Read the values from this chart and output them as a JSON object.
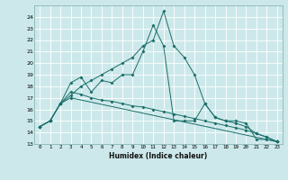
{
  "xlabel": "Humidex (Indice chaleur)",
  "bg_color": "#cde8ea",
  "grid_color": "#ffffff",
  "line_color": "#1a6e6a",
  "series1": [
    [
      0,
      14.5
    ],
    [
      1,
      15.0
    ],
    [
      2,
      16.5
    ],
    [
      3,
      18.3
    ],
    [
      4,
      18.8
    ],
    [
      5,
      17.5
    ],
    [
      6,
      18.5
    ],
    [
      7,
      18.3
    ],
    [
      8,
      19.0
    ],
    [
      9,
      19.0
    ],
    [
      10,
      21.0
    ],
    [
      11,
      23.3
    ],
    [
      12,
      21.5
    ],
    [
      13,
      15.0
    ],
    [
      14,
      15.0
    ],
    [
      15,
      15.0
    ],
    [
      16,
      16.5
    ],
    [
      17,
      15.3
    ],
    [
      18,
      15.0
    ],
    [
      19,
      15.0
    ],
    [
      20,
      14.8
    ],
    [
      21,
      13.4
    ],
    [
      22,
      13.4
    ],
    [
      23,
      13.2
    ]
  ],
  "series2": [
    [
      0,
      14.5
    ],
    [
      1,
      15.0
    ],
    [
      2,
      16.5
    ],
    [
      3,
      17.5
    ],
    [
      4,
      17.3
    ],
    [
      5,
      17.0
    ],
    [
      6,
      16.8
    ],
    [
      7,
      16.7
    ],
    [
      8,
      16.5
    ],
    [
      9,
      16.3
    ],
    [
      10,
      16.2
    ],
    [
      11,
      16.0
    ],
    [
      12,
      15.8
    ],
    [
      13,
      15.6
    ],
    [
      14,
      15.4
    ],
    [
      15,
      15.2
    ],
    [
      16,
      15.0
    ],
    [
      17,
      14.8
    ],
    [
      18,
      14.6
    ],
    [
      19,
      14.4
    ],
    [
      20,
      14.2
    ],
    [
      21,
      13.9
    ],
    [
      22,
      13.6
    ],
    [
      23,
      13.2
    ]
  ],
  "series3": [
    [
      0,
      14.5
    ],
    [
      1,
      15.0
    ],
    [
      2,
      16.5
    ],
    [
      3,
      17.2
    ],
    [
      4,
      18.0
    ],
    [
      5,
      18.5
    ],
    [
      6,
      19.0
    ],
    [
      7,
      19.5
    ],
    [
      8,
      20.0
    ],
    [
      9,
      20.5
    ],
    [
      10,
      21.5
    ],
    [
      11,
      22.0
    ],
    [
      12,
      24.5
    ],
    [
      13,
      21.5
    ],
    [
      14,
      20.5
    ],
    [
      15,
      19.0
    ],
    [
      16,
      16.5
    ],
    [
      17,
      15.3
    ],
    [
      18,
      15.0
    ],
    [
      19,
      14.8
    ],
    [
      20,
      14.5
    ],
    [
      21,
      13.9
    ],
    [
      22,
      13.6
    ],
    [
      23,
      13.2
    ]
  ],
  "series4": [
    [
      0,
      14.5
    ],
    [
      1,
      15.0
    ],
    [
      2,
      16.5
    ],
    [
      3,
      17.0
    ],
    [
      23,
      13.2
    ]
  ],
  "ylim": [
    13,
    25
  ],
  "xlim": [
    -0.5,
    23.5
  ],
  "yticks": [
    13,
    14,
    15,
    16,
    17,
    18,
    19,
    20,
    21,
    22,
    23,
    24
  ],
  "xticks": [
    0,
    1,
    2,
    3,
    4,
    5,
    6,
    7,
    8,
    9,
    10,
    11,
    12,
    13,
    14,
    15,
    16,
    17,
    18,
    19,
    20,
    21,
    22,
    23
  ]
}
